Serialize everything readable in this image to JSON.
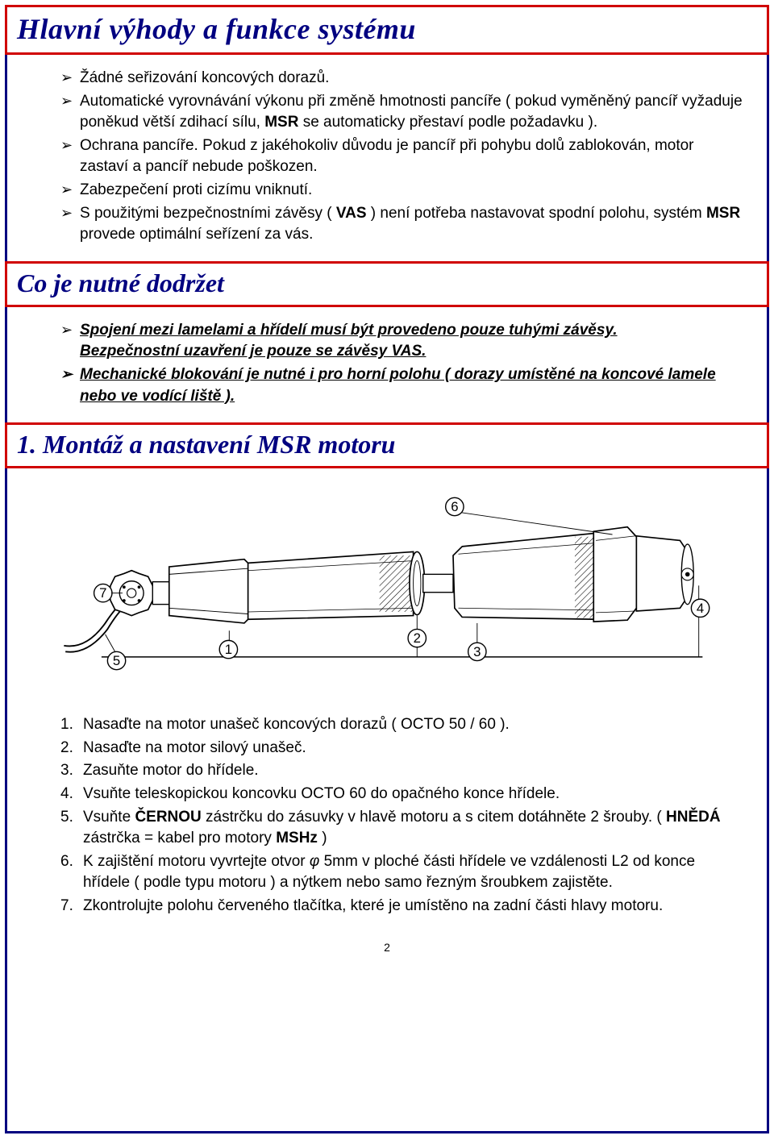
{
  "section1": {
    "title": "Hlavní výhody a funkce systému",
    "bullets": [
      "Žádné seřizování koncových dorazů.",
      "Automatické vyrovnávání výkonu při změně hmotnosti pancíře ( pokud vyměněný pancíř vyžaduje poněkud větší zdihací sílu, <b>MSR</b> se automaticky přestaví podle požadavku ).",
      "Ochrana pancíře. Pokud z jakéhokoliv důvodu je pancíř při pohybu dolů zablokován, motor zastaví a pancíř nebude poškozen.",
      "Zabezpečení proti cizímu vniknutí.",
      "S použitými bezpečnostními závěsy  ( <b>VAS</b> ) není potřeba nastavovat spodní polohu, systém <b>MSR</b> provede optimální seřízení za vás."
    ]
  },
  "section2": {
    "title": "Co je nutné dodržet",
    "bullet1_line1": " Spojení mezi lamelami a hřídelí musí být provedeno pouze tuhými závěsy.",
    "bullet1_line2": "Bezpečnostní uzavření je pouze se závěsy VAS.",
    "bullet2": " Mechanické blokování je nutné i pro horní polohu ( dorazy umístěné na koncové lamele nebo ve vodící liště )."
  },
  "section3": {
    "title": "1.   Montáž a nastavení MSR motoru",
    "steps": [
      "Nasaďte na motor unašeč koncových dorazů ( OCTO 50 / 60 ).",
      "Nasaďte na motor silový unašeč.",
      "Zasuňte motor do hřídele.",
      "Vsuňte teleskopickou koncovku OCTO 60 do opačného konce hřídele.",
      "Vsuňte <b>ČERNOU</b> zástrčku do zásuvky v hlavě motoru a s citem dotáhněte 2 šrouby. ( <b>HNĚDÁ</b> zástrčka = kabel pro motory <b>MSHz</b> )",
      " K zajištění motoru vyvrtejte otvor <i>φ</i> 5mm v ploché části hřídele ve vzdálenosti L2 od konce hřídele ( podle typu motoru ) a nýtkem nebo samo řezným šroubkem zajistěte.",
      "Zkontrolujte polohu červeného tlačítka, které je umístěno na zadní části hlavy motoru."
    ]
  },
  "pageNumber": "2",
  "diagram": {
    "labels": [
      "1",
      "2",
      "3",
      "4",
      "5",
      "6",
      "7"
    ],
    "colors": {
      "stroke": "#000000",
      "fill": "#ffffff",
      "hatch": "#000000"
    }
  }
}
